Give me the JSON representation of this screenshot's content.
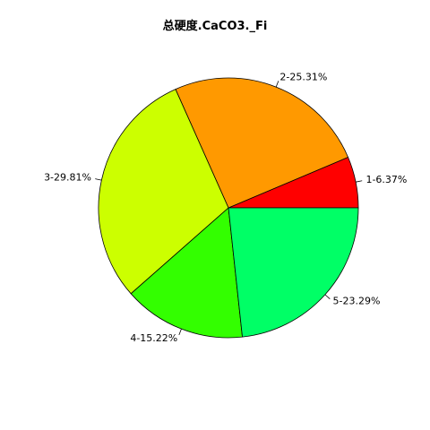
{
  "chart_data": {
    "type": "pie",
    "title": "总硬度.CaCO3._Fi",
    "categories": [
      "1",
      "2",
      "3",
      "4",
      "5"
    ],
    "values": [
      6.37,
      25.31,
      29.81,
      15.22,
      23.29
    ],
    "labels": [
      "1-6.37%",
      "2-25.31%",
      "3-29.81%",
      "4-15.22%",
      "5-23.29%"
    ],
    "colors": [
      "#FF0000",
      "#FF9900",
      "#CCFF00",
      "#33FF00",
      "#00FF66"
    ],
    "direction": "counterclockwise",
    "start": "3 o'clock",
    "legend": "none",
    "grid": false
  }
}
